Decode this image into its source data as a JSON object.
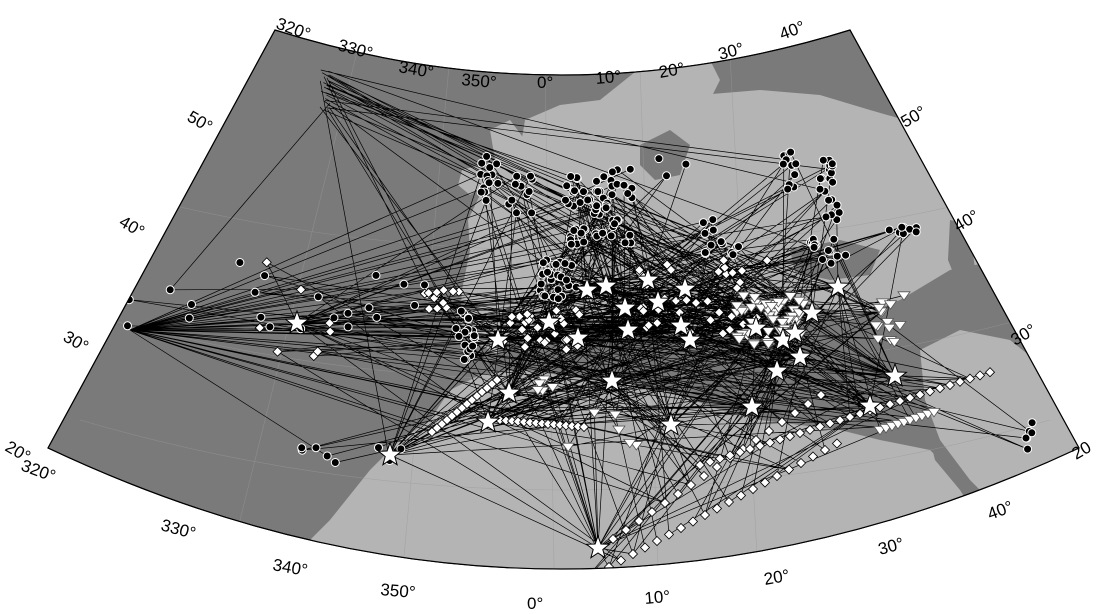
{
  "map": {
    "colors": {
      "ocean": "#7a7a7a",
      "land": "#b4b4b4",
      "paths": "#000000",
      "borders": "#8f8f8f",
      "events": "#ffffff",
      "stations_circle": "#000000",
      "stations_diamond": "#ffffff",
      "stations_triangle": "#ffffff"
    },
    "longitude_labels_top": [
      "320°",
      "330°",
      "340°",
      "350°",
      "0°",
      "10°",
      "20°",
      "30°",
      "40°"
    ],
    "longitude_labels_bottom": [
      "320°",
      "330°",
      "340°",
      "350°",
      "0°",
      "10°",
      "20°",
      "30°",
      "40°"
    ],
    "latitude_labels_left": [
      "50°",
      "40°",
      "30°",
      "20°"
    ],
    "latitude_labels_right": [
      "50°",
      "40°",
      "30°",
      "20"
    ],
    "symbols": {
      "event": "white star",
      "station_type_1": "black circle",
      "station_type_2": "white diamond",
      "station_type_3": "white inverted triangle"
    }
  }
}
